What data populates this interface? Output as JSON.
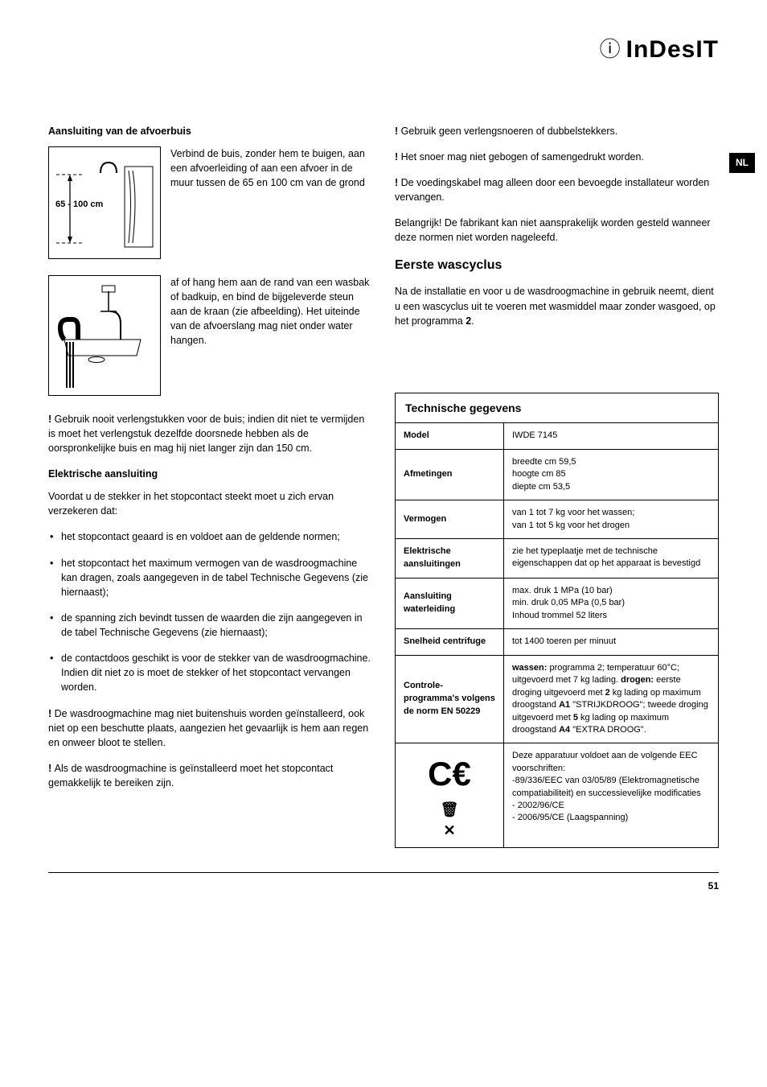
{
  "brand": "InDesIT",
  "lang_tab": "NL",
  "page_number": "51",
  "left": {
    "h1": "Aansluiting van de afvoerbuis",
    "diagram1_label": "65 - 100 cm",
    "p1": "Verbind de buis, zonder hem te buigen, aan een afvoerleiding of aan een afvoer in de muur tussen de 65 en 100 cm van de grond",
    "p2": "af of hang hem aan de rand van een wasbak of badkuip, en bind de bijgeleverde steun aan de kraan (zie afbeelding). Het uiteinde van de afvoerslang mag niet onder water hangen.",
    "warn1": "Gebruik nooit verlengstukken voor de buis; indien dit niet te vermijden is moet het verlengstuk dezelfde doorsnede hebben als de oorspronkelijke buis en mag hij niet langer zijn dan 150 cm.",
    "h2": "Elektrische aansluiting",
    "p3": "Voordat u de stekker in het stopcontact steekt moet u zich ervan verzekeren dat:",
    "bullets": [
      "het stopcontact geaard is en voldoet aan de geldende normen;",
      "het stopcontact het maximum vermogen van de wasdroogmachine kan dragen, zoals aangegeven in de  tabel Technische Gegevens (zie hiernaast);",
      "de spanning zich bevindt tussen de waarden die zijn aangegeven in de tabel Technische Gegevens (zie hiernaast);",
      "de contactdoos geschikt is voor de stekker van de wasdroogmachine. Indien dit niet zo is moet de stekker of het stopcontact vervangen worden."
    ],
    "warn2": "De wasdroogmachine mag niet buitenshuis worden geïnstalleerd, ook niet op een beschutte plaats, aangezien het gevaarlijk is hem aan regen en onweer bloot te stellen.",
    "warn3": "Als de wasdroogmachine is geïnstalleerd moet het stopcontact gemakkelijk te bereiken zijn."
  },
  "right": {
    "warn1": "Gebruik geen verlengsnoeren of dubbelstekkers.",
    "warn2": "Het snoer mag niet gebogen of samengedrukt worden.",
    "warn3": "De voedingskabel mag alleen door een bevoegde installateur worden vervangen.",
    "p1": "Belangrijk! De fabrikant kan niet aansprakelijk worden gesteld wanneer deze normen niet worden nageleefd.",
    "h1": "Eerste wascyclus",
    "p2_a": "Na de installatie en voor u de wasdroogmachine in gebruik neemt, dient u een wascyclus uit te voeren met wasmiddel maar zonder wasgoed, op het programma ",
    "p2_b": "2",
    "p2_c": "."
  },
  "tech": {
    "title": "Technische gegevens",
    "rows": [
      {
        "k": "Model",
        "v": "IWDE 7145"
      },
      {
        "k": "Afmetingen",
        "v": "breedte cm 59,5\nhoogte cm 85\ndiepte cm 53,5"
      },
      {
        "k": "Vermogen",
        "v": "van 1 tot 7 kg voor het wassen;\nvan 1 tot 5 kg voor het drogen"
      },
      {
        "k": "Elektrische aansluitingen",
        "v": "zie het typeplaatje met de technische eigenschappen dat op het apparaat is bevestigd"
      },
      {
        "k": "Aansluiting waterleiding",
        "v": "max. druk 1 MPa (10 bar)\nmin. druk 0,05 MPa (0,5 bar)\nInhoud trommel 52 liters"
      },
      {
        "k": "Snelheid centrifuge",
        "v": "tot 1400 toeren per minuut"
      },
      {
        "k": "Controle-programma's volgens de norm EN 50229",
        "v_html": "<b>wassen:</b> programma  2; temperatuur 60°C; uitgevoerd met 7 kg lading. <b>drogen:</b> eerste droging uitgevoerd met <b>2</b> kg lading op maximum droogstand <b>A1</b> \"STRIJKDROOG\"; tweede droging uitgevoerd met <b>5</b> kg lading op maximum droogstand <b>A4</b> \"EXTRA DROOG\"."
      },
      {
        "k": "_CE_",
        "v": "Deze apparatuur voldoet aan de volgende EEC voorschriften:\n-89/336/EEC van 03/05/89 (Elektromagnetische compatiabiliteit) en successievelijke modificaties\n- 2002/96/CE\n- 2006/95/CE (Laagspanning)"
      }
    ]
  }
}
